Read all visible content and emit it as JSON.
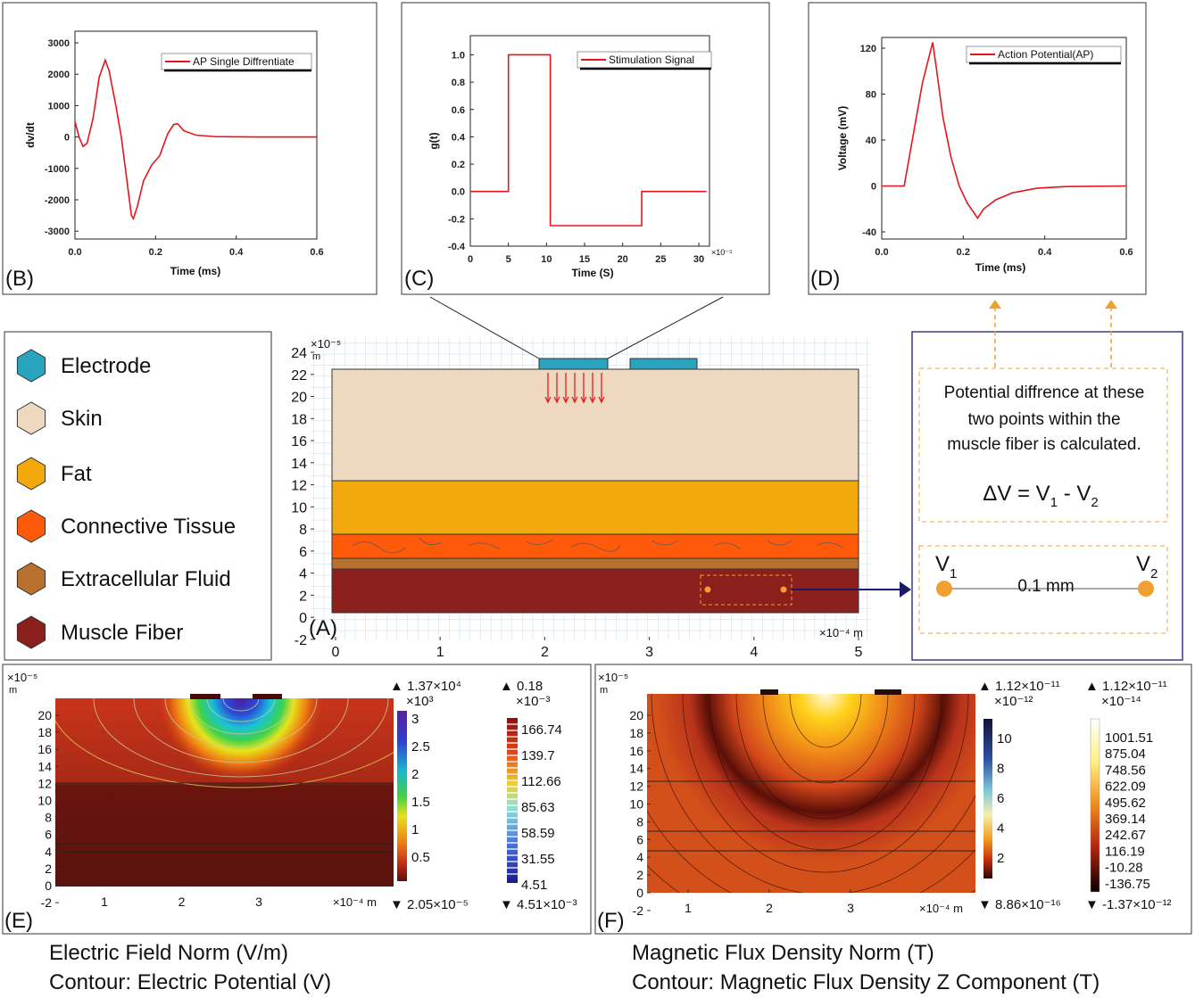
{
  "chart_data": [
    {
      "type": "line",
      "panel_label": "(B)",
      "xlabel": "Time (ms)",
      "ylabel": "dv/dt",
      "legend": "upper right",
      "x": [
        0,
        0.01,
        0.02,
        0.03,
        0.045,
        0.06,
        0.075,
        0.085,
        0.09,
        0.1,
        0.115,
        0.13,
        0.14,
        0.145,
        0.155,
        0.17,
        0.19,
        0.21,
        0.23,
        0.245,
        0.255,
        0.27,
        0.3,
        0.35,
        0.45,
        0.6
      ],
      "series": [
        {
          "name": "AP Single Diffrentiate",
          "color": "#e8141b",
          "values": [
            500,
            0,
            -300,
            -200,
            600,
            1900,
            2450,
            2100,
            1750,
            1100,
            0,
            -1500,
            -2500,
            -2600,
            -2200,
            -1400,
            -900,
            -600,
            100,
            400,
            420,
            200,
            60,
            10,
            0,
            0
          ]
        }
      ],
      "xlim": [
        0,
        0.6
      ],
      "ylim": [
        -3250,
        3370
      ],
      "xticks": [
        {
          "value": 0,
          "label": "0.0"
        },
        0.2,
        0.4,
        0.6
      ],
      "yticks": [
        -3000,
        -2000,
        -1000,
        0,
        1000,
        2000,
        3000
      ]
    },
    {
      "type": "line",
      "panel_label": "(C)",
      "xlabel": "Time (S)",
      "ylabel": "g(t)",
      "x_exponent": "×10⁻⁵",
      "legend": "upper right",
      "x": [
        0,
        5,
        5,
        10.5,
        10.5,
        22.5,
        22.5,
        31
      ],
      "series": [
        {
          "name": "Stimulation Signal",
          "color": "#e8141b",
          "values": [
            0,
            0,
            1,
            1,
            -0.25,
            -0.25,
            0,
            0
          ]
        }
      ],
      "xlim": [
        0,
        31.4
      ],
      "ylim": [
        -0.4,
        1.14
      ],
      "xticks": [
        0,
        5,
        10,
        15,
        20,
        25,
        30
      ],
      "yticks": [
        -0.4,
        -0.2,
        {
          "value": 0,
          "label": "0.0"
        },
        0.2,
        0.4,
        0.6,
        0.8,
        {
          "value": 1,
          "label": "1.0"
        }
      ]
    },
    {
      "type": "line",
      "panel_label": "(D)",
      "xlabel": "Time (ms)",
      "ylabel": "Voltage (mV)",
      "legend": "upper right",
      "x": [
        0,
        0.055,
        0.06,
        0.08,
        0.1,
        0.125,
        0.135,
        0.15,
        0.17,
        0.19,
        0.21,
        0.235,
        0.25,
        0.28,
        0.32,
        0.38,
        0.45,
        0.6
      ],
      "series": [
        {
          "name": "Action Potential(AP)",
          "color": "#e8141b",
          "values": [
            0,
            0,
            10,
            50,
            90,
            125,
            100,
            60,
            25,
            0,
            -15,
            -28,
            -20,
            -12,
            -6,
            -2,
            -0.5,
            0
          ]
        }
      ],
      "xlim": [
        0,
        0.6
      ],
      "ylim": [
        -46.2,
        129.3
      ],
      "xticks": [
        {
          "value": 0,
          "label": "0.0"
        },
        0.2,
        0.4,
        0.6
      ],
      "yticks": [
        -40,
        0,
        40,
        80,
        120
      ]
    }
  ],
  "legend": {
    "items": [
      {
        "label": "Electrode",
        "color": "#2aa3bf"
      },
      {
        "label": "Skin",
        "color": "#efd8c0"
      },
      {
        "label": "Fat",
        "color": "#f2a90c"
      },
      {
        "label": "Connective Tissue",
        "color": "#ff5a0a"
      },
      {
        "label": "Extracellular Fluid",
        "color": "#b8702e"
      },
      {
        "label": "Muscle Fiber",
        "color": "#8a1f1c"
      }
    ]
  },
  "panel_a": {
    "label": "(A)",
    "y_exponent": "×10⁻⁵",
    "y_unit": "m",
    "x_unit": "×10⁻⁴ m",
    "yticks": [
      -2,
      0,
      2,
      4,
      6,
      8,
      10,
      12,
      14,
      16,
      18,
      20,
      22,
      24
    ],
    "xticks": [
      0,
      1,
      2,
      3,
      4,
      5
    ]
  },
  "calc_box": {
    "lines": [
      "Potential diffrence at these",
      "two points within the",
      "muscle fiber is calculated."
    ],
    "formula": [
      "ΔV = V",
      "1",
      " - V",
      "2"
    ],
    "points": [
      [
        "V",
        "1"
      ],
      [
        "V",
        "2"
      ]
    ],
    "distance": "0.1 mm"
  },
  "panel_e": {
    "label": "(E)",
    "y_exponent": "×10⁻⁵",
    "y_unit": "m",
    "x_unit": "×10⁻⁴ m",
    "yticks": [
      -2,
      0,
      2,
      4,
      6,
      8,
      10,
      12,
      14,
      16,
      18,
      20
    ],
    "xticks": [
      1,
      2,
      3
    ],
    "colorbar1": {
      "max": "▲ 1.37×10⁴",
      "exponent": "×10³",
      "ticks": [
        "3",
        "2.5",
        "2",
        "1.5",
        "1",
        "0.5"
      ],
      "min": "▼ 2.05×10⁻⁵"
    },
    "colorbar2": {
      "max": "▲ 0.18",
      "exponent": "×10⁻³",
      "ticks": [
        "166.74",
        "139.7",
        "112.66",
        "85.63",
        "58.59",
        "31.55",
        "4.51"
      ],
      "min": "▼ 4.51×10⁻³"
    },
    "caption": [
      "Electric Field Norm (V/m)",
      "Contour: Electric Potential (V)"
    ]
  },
  "panel_f": {
    "label": "(F)",
    "y_exponent": "×10⁻⁵",
    "y_unit": "m",
    "x_unit": "×10⁻⁴ m",
    "yticks": [
      -2,
      0,
      2,
      4,
      6,
      8,
      10,
      12,
      14,
      16,
      18,
      20
    ],
    "xticks": [
      1,
      2,
      3
    ],
    "colorbar1": {
      "max": "▲ 1.12×10⁻¹¹",
      "exponent": "×10⁻¹²",
      "ticks": [
        "10",
        "8",
        "6",
        "4",
        "2"
      ],
      "min": "▼ 8.86×10⁻¹⁶"
    },
    "colorbar2": {
      "max": "▲ 1.12×10⁻¹¹",
      "exponent": "×10⁻¹⁴",
      "ticks": [
        "1001.51",
        "875.04",
        "748.56",
        "622.09",
        "495.62",
        "369.14",
        "242.67",
        "116.19",
        "-10.28",
        "-136.75"
      ],
      "min": "▼ -1.37×10⁻¹²"
    },
    "caption": [
      "Magnetic Flux Density Norm (T)",
      "Contour: Magnetic Flux Density Z Component (T)"
    ]
  }
}
